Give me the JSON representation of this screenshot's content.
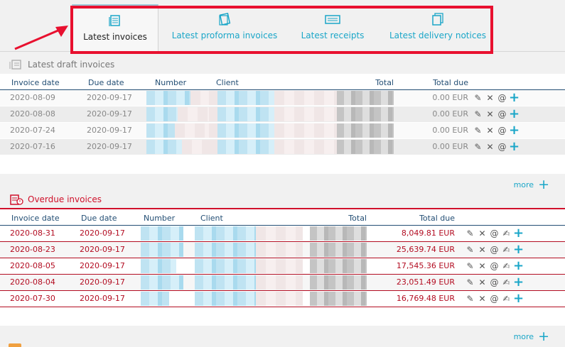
{
  "tabs": [
    {
      "label": "Latest invoices",
      "icon": "invoice-stack-icon",
      "active": true
    },
    {
      "label": "Latest proforma invoices",
      "icon": "proforma-icon",
      "active": false
    },
    {
      "label": "Latest receipts",
      "icon": "receipt-icon",
      "active": false
    },
    {
      "label": "Latest delivery notices",
      "icon": "delivery-notice-icon",
      "active": false
    }
  ],
  "draft": {
    "title": "Latest draft invoices",
    "columns": {
      "invoice_date": "Invoice date",
      "due_date": "Due date",
      "number": "Number",
      "client": "Client",
      "total": "Total",
      "total_due": "Total due"
    },
    "rows": [
      {
        "invoice_date": "2020-08-09",
        "due_date": "2020-09-17",
        "total_due": "0.00 EUR"
      },
      {
        "invoice_date": "2020-08-08",
        "due_date": "2020-09-17",
        "total_due": "0.00 EUR"
      },
      {
        "invoice_date": "2020-07-24",
        "due_date": "2020-09-17",
        "total_due": "0.00 EUR"
      },
      {
        "invoice_date": "2020-07-16",
        "due_date": "2020-09-17",
        "total_due": "0.00 EUR"
      }
    ],
    "more_label": "more"
  },
  "overdue": {
    "title": "Overdue invoices",
    "columns": {
      "invoice_date": "Invoice date",
      "due_date": "Due date",
      "number": "Number",
      "client": "Client",
      "total": "Total",
      "total_due": "Total due"
    },
    "rows": [
      {
        "invoice_date": "2020-08-31",
        "due_date": "2020-09-17",
        "total_due": "8,049.81 EUR"
      },
      {
        "invoice_date": "2020-08-23",
        "due_date": "2020-09-17",
        "total_due": "25,639.74 EUR"
      },
      {
        "invoice_date": "2020-08-05",
        "due_date": "2020-09-17",
        "total_due": "17,545.36 EUR"
      },
      {
        "invoice_date": "2020-08-04",
        "due_date": "2020-09-17",
        "total_due": "23,051.49 EUR"
      },
      {
        "invoice_date": "2020-07-30",
        "due_date": "2020-09-17",
        "total_due": "16,769.48 EUR"
      }
    ],
    "more_label": "more"
  },
  "colors": {
    "accent": "#1aa6c8",
    "danger": "#d0112b",
    "highlight": "#e8102f",
    "header_text": "#234e74"
  }
}
